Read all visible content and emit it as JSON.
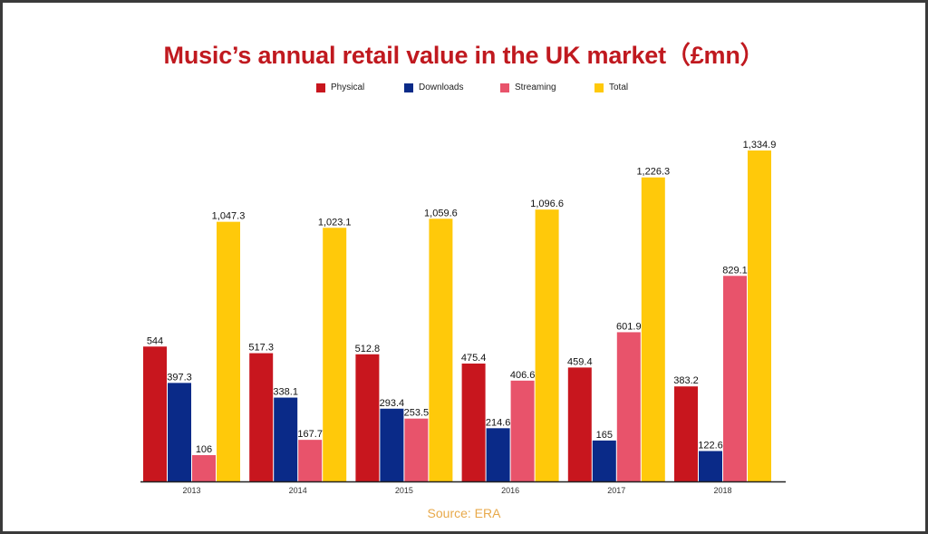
{
  "title": "Music’s annual retail value in the UK market",
  "title_unit": "（£mn）",
  "source": "Source: ERA",
  "colors": {
    "Physical": "#c8161e",
    "Downloads": "#0a2a88",
    "Streaming": "#e8536b",
    "Total": "#ffc90a",
    "frame": "#3a3a3a",
    "title": "#c0191f",
    "source": "#e8a94a"
  },
  "chart_data": {
    "type": "bar",
    "title": "Music’s annual retail value in the UK market（£mn）",
    "xlabel": "",
    "ylabel": "",
    "categories": [
      "2013",
      "2014",
      "2015",
      "2016",
      "2017",
      "2018"
    ],
    "series": [
      {
        "name": "Physical",
        "values": [
          544,
          517.3,
          512.8,
          475.4,
          459.4,
          383.2
        ],
        "labels": [
          "544",
          "517.3",
          "512.8",
          "475.4",
          "459.4",
          "383.2"
        ]
      },
      {
        "name": "Downloads",
        "values": [
          397.3,
          338.1,
          293.4,
          214.6,
          165,
          122.6
        ],
        "labels": [
          "397.3",
          "338.1",
          "293.4",
          "214.6",
          "165",
          "122.6"
        ]
      },
      {
        "name": "Streaming",
        "values": [
          106,
          167.7,
          253.5,
          406.6,
          601.9,
          829.1
        ],
        "labels": [
          "106",
          "167.7",
          "253.5",
          "406.6",
          "601.9",
          "829.1"
        ]
      },
      {
        "name": "Total",
        "values": [
          1047.3,
          1023.1,
          1059.6,
          1096.6,
          1226.3,
          1334.9
        ],
        "labels": [
          "1,047.3",
          "1,023.1",
          "1,059.6",
          "1,096.6",
          "1,226.3",
          "1,334.9"
        ]
      }
    ],
    "ylim": [
      0,
      1334.9
    ],
    "grid": false,
    "legend_position": "top-center"
  }
}
